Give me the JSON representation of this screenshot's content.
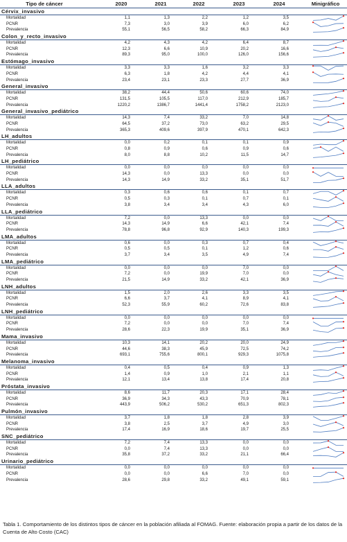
{
  "header": {
    "tipo": "Tipo de cáncer",
    "years": [
      "2020",
      "2021",
      "2022",
      "2023",
      "2024"
    ],
    "minigrafico": "Minigráfico"
  },
  "spark_colors": {
    "line": "#4e7cc2",
    "marker": "#e8241c"
  },
  "groups": [
    {
      "title": "Cérvix_invasivo",
      "rows": [
        {
          "label": "Mortalidad",
          "values": [
            "1,1",
            "1,3",
            "2,2",
            "1,2",
            "3,5"
          ],
          "series": [
            1.1,
            1.3,
            2.2,
            1.2,
            3.5
          ]
        },
        {
          "label": "PCNR",
          "values": [
            "7,3",
            "3,0",
            "3,9",
            "6,0",
            "6,2"
          ],
          "series": [
            7.3,
            3.0,
            3.9,
            6.0,
            6.2
          ]
        },
        {
          "label": "Prevalencia",
          "values": [
            "55,1",
            "56,5",
            "58,2",
            "66,3",
            "84,9"
          ],
          "series": [
            55.1,
            56.5,
            58.2,
            66.3,
            84.9
          ]
        }
      ]
    },
    {
      "title": "Colon_y_recto_invasivo",
      "rows": [
        {
          "label": "Mortalidad",
          "values": [
            "4,2",
            "4,3",
            "4,2",
            "6,4",
            "8,7"
          ],
          "series": [
            4.2,
            4.3,
            4.2,
            6.4,
            8.7
          ]
        },
        {
          "label": "PCNR",
          "values": [
            "12,3",
            "6,6",
            "10,9",
            "20,2",
            "16,6"
          ],
          "series": [
            12.3,
            6.6,
            10.9,
            20.2,
            16.6
          ]
        },
        {
          "label": "Prevalencia",
          "values": [
            "89,3",
            "95,0",
            "100,0",
            "126,0",
            "156,6"
          ],
          "series": [
            89.3,
            95.0,
            100.0,
            126.0,
            156.6
          ]
        }
      ]
    },
    {
      "title": "Estómago_invasivo",
      "rows": [
        {
          "label": "Mortalidad",
          "values": [
            "3,3",
            "3,3",
            "1,6",
            "3,2",
            "3,3"
          ],
          "series": [
            3.3,
            3.3,
            1.6,
            3.2,
            3.3
          ]
        },
        {
          "label": "PCNR",
          "values": [
            "6,3",
            "1,8",
            "4,2",
            "4,4",
            "4,1"
          ],
          "series": [
            6.3,
            1.8,
            4.2,
            4.4,
            4.1
          ]
        },
        {
          "label": "Prevalencia",
          "values": [
            "23,4",
            "23,1",
            "23,3",
            "27,7",
            "36,9"
          ],
          "series": [
            23.4,
            23.1,
            23.3,
            27.7,
            36.9
          ]
        }
      ]
    },
    {
      "title": "General_invasivo",
      "rows": [
        {
          "label": "Mortalidad",
          "values": [
            "38,2",
            "44,4",
            "50,6",
            "60,6",
            "74,0"
          ],
          "series": [
            38.2,
            44.4,
            50.6,
            60.6,
            74.0
          ]
        },
        {
          "label": "PCNR",
          "values": [
            "131,5",
            "105,5",
            "117,0",
            "212,9",
            "185,7"
          ],
          "series": [
            131.5,
            105.5,
            117.0,
            212.9,
            185.7
          ]
        },
        {
          "label": "Prevalencia",
          "values": [
            "1220,2",
            "1386,7",
            "1441,4",
            "1758,2",
            "2123,0"
          ],
          "series": [
            1220.2,
            1386.7,
            1441.4,
            1758.2,
            2123.0
          ]
        }
      ]
    },
    {
      "title": "General_invasivo_pediátrico",
      "rows": [
        {
          "label": "Mortalidad",
          "values": [
            "14,3",
            "7,4",
            "33,2",
            "7,0",
            "14,8"
          ],
          "series": [
            14.3,
            7.4,
            33.2,
            7.0,
            14.8
          ]
        },
        {
          "label": "PCNR",
          "values": [
            "64,5",
            "37,2",
            "73,0",
            "63,2",
            "29,5"
          ],
          "series": [
            64.5,
            37.2,
            73.0,
            63.2,
            29.5
          ]
        },
        {
          "label": "Prevalencia",
          "values": [
            "365,3",
            "409,6",
            "397,9",
            "470,1",
            "642,3"
          ],
          "series": [
            365.3,
            409.6,
            397.9,
            470.1,
            642.3
          ]
        }
      ]
    },
    {
      "title": "LH_adultos",
      "rows": [
        {
          "label": "Mortalidad",
          "values": [
            "0,0",
            "0,2",
            "0,1",
            "0,1",
            "0,9"
          ],
          "series": [
            0.0,
            0.2,
            0.1,
            0.1,
            0.9
          ]
        },
        {
          "label": "PCNR",
          "values": [
            "0,8",
            "0,9",
            "0,6",
            "0,9",
            "0,6"
          ],
          "series": [
            0.8,
            0.9,
            0.6,
            0.9,
            0.6
          ]
        },
        {
          "label": "Prevalencia",
          "values": [
            "8,0",
            "8,8",
            "10,2",
            "11,5",
            "14,7"
          ],
          "series": [
            8.0,
            8.8,
            10.2,
            11.5,
            14.7
          ]
        }
      ]
    },
    {
      "title": "LH_pediátrico",
      "rows": [
        {
          "label": "Mortalidad",
          "values": [
            "0,0",
            "0,0",
            "0,0",
            "0,0",
            "0,0"
          ],
          "series": [
            0,
            0,
            0,
            0,
            0
          ]
        },
        {
          "label": "PCNR",
          "values": [
            "14,3",
            "0,0",
            "13,3",
            "0,0",
            "0,0"
          ],
          "series": [
            14.3,
            0.0,
            13.3,
            0.0,
            0.0
          ]
        },
        {
          "label": "Prevalencia",
          "values": [
            "14,3",
            "14,9",
            "33,2",
            "35,1",
            "51,7"
          ],
          "series": [
            14.3,
            14.9,
            33.2,
            35.1,
            51.7
          ]
        }
      ]
    },
    {
      "title": "LLA_adultos",
      "rows": [
        {
          "label": "Mortalidad",
          "values": [
            "0,3",
            "0,6",
            "0,6",
            "0,1",
            "0,7"
          ],
          "series": [
            0.3,
            0.6,
            0.6,
            0.1,
            0.7
          ]
        },
        {
          "label": "PCNR",
          "values": [
            "0,5",
            "0,3",
            "0,1",
            "0,7",
            "0,1"
          ],
          "series": [
            0.5,
            0.3,
            0.1,
            0.7,
            0.1
          ]
        },
        {
          "label": "Prevalencia",
          "values": [
            "3,8",
            "3,4",
            "3,4",
            "4,3",
            "6,0"
          ],
          "series": [
            3.8,
            3.4,
            3.4,
            4.3,
            6.0
          ]
        }
      ]
    },
    {
      "title": "LLA_pediátrico",
      "rows": [
        {
          "label": "Mortalidad",
          "values": [
            "7,2",
            "0,0",
            "13,3",
            "0,0",
            "0,0"
          ],
          "series": [
            7.2,
            0.0,
            13.3,
            0.0,
            0.0
          ]
        },
        {
          "label": "PCNR",
          "values": [
            "14,3",
            "14,9",
            "6,6",
            "42,1",
            "7,4"
          ],
          "series": [
            14.3,
            14.9,
            6.6,
            42.1,
            7.4
          ]
        },
        {
          "label": "Prevalencia",
          "values": [
            "78,8",
            "96,8",
            "92,9",
            "140,3",
            "199,3"
          ],
          "series": [
            78.8,
            96.8,
            92.9,
            140.3,
            199.3
          ]
        }
      ]
    },
    {
      "title": "LMA_adultos",
      "rows": [
        {
          "label": "Mortalidad",
          "values": [
            "0,6",
            "0,0",
            "0,3",
            "0,7",
            "0,4"
          ],
          "series": [
            0.6,
            0.0,
            0.3,
            0.7,
            0.4
          ]
        },
        {
          "label": "PCNR",
          "values": [
            "0,5",
            "0,5",
            "0,1",
            "1,2",
            "0,6"
          ],
          "series": [
            0.5,
            0.5,
            0.1,
            1.2,
            0.6
          ]
        },
        {
          "label": "Prevalencia",
          "values": [
            "3,7",
            "3,4",
            "3,5",
            "4,9",
            "7,4"
          ],
          "series": [
            3.7,
            3.4,
            3.5,
            4.9,
            7.4
          ]
        }
      ]
    },
    {
      "title": "LMA_pediátrico",
      "rows": [
        {
          "label": "Mortalidad",
          "values": [
            "0,0",
            "0,0",
            "0,0",
            "7,0",
            "0,0"
          ],
          "series": [
            0.0,
            0.0,
            0.0,
            7.0,
            0.0
          ]
        },
        {
          "label": "PCNR",
          "values": [
            "7,2",
            "0,0",
            "19,9",
            "7,0",
            "0,0"
          ],
          "series": [
            7.2,
            0.0,
            19.9,
            7.0,
            0.0
          ]
        },
        {
          "label": "Prevalencia",
          "values": [
            "21,5",
            "14,9",
            "33,2",
            "42,1",
            "36,9"
          ],
          "series": [
            21.5,
            14.9,
            33.2,
            42.1,
            36.9
          ]
        }
      ]
    },
    {
      "title": "LNH_adultos",
      "rows": [
        {
          "label": "Mortalidad",
          "values": [
            "1,5",
            "2,0",
            "2,6",
            "3,3",
            "3,5"
          ],
          "series": [
            1.5,
            2.0,
            2.6,
            3.3,
            3.5
          ]
        },
        {
          "label": "PCNR",
          "values": [
            "6,6",
            "3,7",
            "4,1",
            "8,9",
            "4,1"
          ],
          "series": [
            6.6,
            3.7,
            4.1,
            8.9,
            4.1
          ]
        },
        {
          "label": "Prevalencia",
          "values": [
            "52,3",
            "55,9",
            "60,2",
            "72,6",
            "83,8"
          ],
          "series": [
            52.3,
            55.9,
            60.2,
            72.6,
            83.8
          ]
        }
      ]
    },
    {
      "title": "LNH_pediátrico",
      "rows": [
        {
          "label": "Mortalidad",
          "values": [
            "0,0",
            "0,0",
            "0,0",
            "0,0",
            "0,0"
          ],
          "series": [
            0,
            0,
            0,
            0,
            0
          ]
        },
        {
          "label": "PCNR",
          "values": [
            "7,2",
            "0,0",
            "0,0",
            "7,0",
            "7,4"
          ],
          "series": [
            7.2,
            0.0,
            0.0,
            7.0,
            7.4
          ]
        },
        {
          "label": "Prevalencia",
          "values": [
            "28,6",
            "22,3",
            "19,9",
            "35,1",
            "36,9"
          ],
          "series": [
            28.6,
            22.3,
            19.9,
            35.1,
            36.9
          ]
        }
      ]
    },
    {
      "title": "Mama_invasivo",
      "rows": [
        {
          "label": "Mortalidad",
          "values": [
            "10,3",
            "14,1",
            "20,2",
            "20,0",
            "24,9"
          ],
          "series": [
            10.3,
            14.1,
            20.2,
            20.0,
            24.9
          ]
        },
        {
          "label": "PCNR",
          "values": [
            "44,6",
            "38,3",
            "45,9",
            "72,5",
            "74,2"
          ],
          "series": [
            44.6,
            38.3,
            45.9,
            72.5,
            74.2
          ]
        },
        {
          "label": "Prevalencia",
          "values": [
            "693,1",
            "755,6",
            "800,1",
            "929,3",
            "1075,8"
          ],
          "series": [
            693.1,
            755.6,
            800.1,
            929.3,
            1075.8
          ]
        }
      ]
    },
    {
      "title": "Melanoma_invasivo",
      "rows": [
        {
          "label": "Mortalidad",
          "values": [
            "0,4",
            "0,5",
            "0,4",
            "0,9",
            "1,3"
          ],
          "series": [
            0.4,
            0.5,
            0.4,
            0.9,
            1.3
          ]
        },
        {
          "label": "PCNR",
          "values": [
            "1,4",
            "0,9",
            "1,0",
            "2,1",
            "1,1"
          ],
          "series": [
            1.4,
            0.9,
            1.0,
            2.1,
            1.1
          ]
        },
        {
          "label": "Prevalencia",
          "values": [
            "12,1",
            "13,4",
            "13,8",
            "17,4",
            "20,8"
          ],
          "series": [
            12.1,
            13.4,
            13.8,
            17.4,
            20.8
          ]
        }
      ]
    },
    {
      "title": "Próstata_invasivo",
      "rows": [
        {
          "label": "Mortalidad",
          "values": [
            "8,6",
            "11,7",
            "20,3",
            "17,1",
            "28,4"
          ],
          "series": [
            8.6,
            11.7,
            20.3,
            17.1,
            28.4
          ]
        },
        {
          "label": "PCNR",
          "values": [
            "36,9",
            "34,3",
            "43,3",
            "70,9",
            "78,1"
          ],
          "series": [
            36.9,
            34.3,
            43.3,
            70.9,
            78.1
          ]
        },
        {
          "label": "Prevalencia",
          "values": [
            "443,9",
            "506,2",
            "530,2",
            "651,3",
            "802,3"
          ],
          "series": [
            443.9,
            506.2,
            530.2,
            651.3,
            802.3
          ]
        }
      ]
    },
    {
      "title": "Pulmón_invasivo",
      "rows": [
        {
          "label": "Mortalidad",
          "values": [
            "3,7",
            "1,8",
            "1,8",
            "2,8",
            "3,9"
          ],
          "series": [
            3.7,
            1.8,
            1.8,
            2.8,
            3.9
          ]
        },
        {
          "label": "PCNR",
          "values": [
            "3,8",
            "2,5",
            "3,7",
            "4,9",
            "3,0"
          ],
          "series": [
            3.8,
            2.5,
            3.7,
            4.9,
            3.0
          ]
        },
        {
          "label": "Prevalencia",
          "values": [
            "17,4",
            "16,9",
            "18,6",
            "19,7",
            "25,5"
          ],
          "series": [
            17.4,
            16.9,
            18.6,
            19.7,
            25.5
          ]
        }
      ]
    },
    {
      "title": "SNC_pediátrico",
      "rows": [
        {
          "label": "Mortalidad",
          "values": [
            "7,2",
            "7,4",
            "13,3",
            "0,0",
            "0,0"
          ],
          "series": [
            7.2,
            7.4,
            13.3,
            0.0,
            0.0
          ]
        },
        {
          "label": "PCNR",
          "values": [
            "0,0",
            "7,4",
            "13,3",
            "0,0",
            "0,0"
          ],
          "series": [
            0.0,
            7.4,
            13.3,
            0.0,
            0.0
          ]
        },
        {
          "label": "Prevalencia",
          "values": [
            "35,8",
            "37,2",
            "33,2",
            "21,1",
            "66,4"
          ],
          "series": [
            35.8,
            37.2,
            33.2,
            21.1,
            66.4
          ]
        }
      ]
    },
    {
      "title": "Urinario_pediátrico",
      "rows": [
        {
          "label": "Mortalidad",
          "values": [
            "0,0",
            "0,0",
            "0,0",
            "0,0",
            "0,0"
          ],
          "series": [
            0,
            0,
            0,
            0,
            0
          ]
        },
        {
          "label": "PCNR",
          "values": [
            "0,0",
            "0,0",
            "6,6",
            "7,0",
            "0,0"
          ],
          "series": [
            0.0,
            0.0,
            6.6,
            7.0,
            0.0
          ]
        },
        {
          "label": "Prevalencia",
          "values": [
            "28,6",
            "29,8",
            "33,2",
            "49,1",
            "59,1"
          ],
          "series": [
            28.6,
            29.8,
            33.2,
            49.1,
            59.1
          ]
        }
      ]
    }
  ],
  "caption": "Tabla 1. Comportamiento de los distintos tipos de cáncer en la población afiliada al FOMAG. Fuente: elaboración propia a partir de los datos de la Cuenta de Alto Costo (CAC)"
}
